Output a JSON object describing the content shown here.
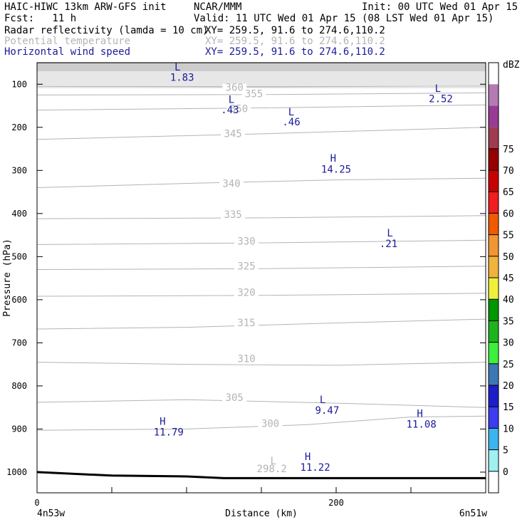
{
  "header": {
    "title_left": "HAIC-HIWC 13km ARW-GFS init",
    "title_center": "NCAR/MMM",
    "init": "Init: 00 UTC Wed 01 Apr 15",
    "fcst": "Fcst:   11 h",
    "valid": "Valid: 11 UTC Wed 01 Apr 15 (08 LST Wed 01 Apr 15)"
  },
  "fields": [
    {
      "name": "Radar reflectivity (lamda = 10 cm)",
      "xy": "XY= 259.5, 91.6 to 274.6,110.2",
      "color": "#000000"
    },
    {
      "name": "Potential temperature",
      "xy": "XY= 259.5, 91.6 to 274.6,110.2",
      "color": "#b4b4b4"
    },
    {
      "name": "Horizontal wind speed",
      "xy": "XY= 259.5, 91.6 to 274.6,110.2",
      "color": "#1a1a9a"
    }
  ],
  "chart_data": {
    "type": "cross-section",
    "xlabel": "Distance (km)",
    "ylabel": "Pressure (hPa)",
    "xlim": [
      0,
      300
    ],
    "ylim": [
      1048,
      50
    ],
    "x_ticks": [
      0,
      200
    ],
    "x_tick_labels": [
      "0",
      "200"
    ],
    "y_ticks": [
      100,
      200,
      300,
      400,
      500,
      600,
      700,
      800,
      900,
      1000
    ],
    "y_tick_labels": [
      "100",
      "200",
      "300",
      "400",
      "500",
      "600",
      "700",
      "800",
      "900",
      "1000"
    ],
    "x_start_label": "4n53w",
    "x_end_label": "6n51w",
    "dbz_scale": {
      "unit": "dBZ",
      "levels": [
        "0",
        "5",
        "10",
        "15",
        "20",
        "25",
        "30",
        "35",
        "40",
        "45",
        "50",
        "55",
        "60",
        "65",
        "70",
        "75"
      ],
      "colors": [
        "#ffffff",
        "#a0f0f0",
        "#3cb4f0",
        "#3c3cf0",
        "#1e1ec8",
        "#3c78b4",
        "#3cf03c",
        "#1eb41e",
        "#009600",
        "#f0f03c",
        "#f0b43c",
        "#f09632",
        "#f05a00",
        "#f01e1e",
        "#c80000",
        "#960000",
        "#a03c50",
        "#963c96",
        "#b47ab4",
        "#ffffff"
      ]
    },
    "theta_contours": [
      {
        "label": "360",
        "points": [
          [
            0,
            105
          ],
          [
            150,
            106
          ],
          [
            300,
            104
          ]
        ]
      },
      {
        "label": "355",
        "points": [
          [
            0,
            125
          ],
          [
            150,
            124
          ],
          [
            300,
            120
          ]
        ]
      },
      {
        "label": "350",
        "points": [
          [
            0,
            160
          ],
          [
            150,
            155
          ],
          [
            300,
            148
          ]
        ]
      },
      {
        "label": "345",
        "points": [
          [
            0,
            228
          ],
          [
            150,
            215
          ],
          [
            300,
            200
          ]
        ]
      },
      {
        "label": "340",
        "points": [
          [
            0,
            340
          ],
          [
            100,
            330
          ],
          [
            200,
            322
          ],
          [
            300,
            318
          ]
        ]
      },
      {
        "label": "335",
        "points": [
          [
            0,
            412
          ],
          [
            150,
            410
          ],
          [
            300,
            405
          ]
        ]
      },
      {
        "label": "330",
        "points": [
          [
            0,
            472
          ],
          [
            150,
            468
          ],
          [
            300,
            462
          ]
        ]
      },
      {
        "label": "325",
        "points": [
          [
            0,
            530
          ],
          [
            150,
            528
          ],
          [
            300,
            522
          ]
        ]
      },
      {
        "label": "320",
        "points": [
          [
            0,
            592
          ],
          [
            150,
            590
          ],
          [
            300,
            585
          ]
        ]
      },
      {
        "label": "315",
        "points": [
          [
            0,
            668
          ],
          [
            100,
            664
          ],
          [
            200,
            654
          ],
          [
            300,
            645
          ]
        ]
      },
      {
        "label": "310",
        "points": [
          [
            0,
            745
          ],
          [
            100,
            750
          ],
          [
            200,
            752
          ],
          [
            300,
            745
          ]
        ]
      },
      {
        "label": "305",
        "points": [
          [
            0,
            838
          ],
          [
            100,
            832
          ],
          [
            200,
            840
          ],
          [
            300,
            850
          ]
        ]
      },
      {
        "label": "300",
        "points": [
          [
            0,
            903
          ],
          [
            100,
            900
          ],
          [
            180,
            890
          ],
          [
            250,
            872
          ],
          [
            300,
            870
          ]
        ]
      }
    ],
    "theta_labels": [
      {
        "text": "360",
        "x": 132,
        "p": 115
      },
      {
        "text": "355",
        "x": 145,
        "p": 130
      },
      {
        "text": "350",
        "x": 135,
        "p": 165
      },
      {
        "text": "345",
        "x": 131,
        "p": 223
      },
      {
        "text": "340",
        "x": 130,
        "p": 338
      },
      {
        "text": "335",
        "x": 131,
        "p": 410
      },
      {
        "text": "330",
        "x": 140,
        "p": 472
      },
      {
        "text": "325",
        "x": 140,
        "p": 530
      },
      {
        "text": "320",
        "x": 140,
        "p": 591
      },
      {
        "text": "315",
        "x": 140,
        "p": 661
      },
      {
        "text": "310",
        "x": 140,
        "p": 745
      },
      {
        "text": "305",
        "x": 132,
        "p": 835
      },
      {
        "text": "300",
        "x": 156,
        "p": 895
      },
      {
        "text": "L",
        "x": 158,
        "p": 982
      },
      {
        "text": "298.2",
        "x": 157,
        "p": 1000
      }
    ],
    "wind_labels": [
      {
        "text": "L",
        "x": 94,
        "p": 68
      },
      {
        "text": "1.83",
        "x": 97,
        "p": 92
      },
      {
        "text": "L",
        "x": 130,
        "p": 143
      },
      {
        "text": ".43",
        "x": 129,
        "p": 167
      },
      {
        "text": "L",
        "x": 170,
        "p": 172
      },
      {
        "text": ".46",
        "x": 170,
        "p": 195
      },
      {
        "text": "L",
        "x": 268,
        "p": 118
      },
      {
        "text": "2.52",
        "x": 270,
        "p": 142
      },
      {
        "text": "H",
        "x": 198,
        "p": 280
      },
      {
        "text": "14.25",
        "x": 200,
        "p": 305
      },
      {
        "text": "L",
        "x": 236,
        "p": 453
      },
      {
        "text": ".21",
        "x": 235,
        "p": 478
      },
      {
        "text": "L",
        "x": 191,
        "p": 840
      },
      {
        "text": "9.47",
        "x": 194,
        "p": 865
      },
      {
        "text": "H",
        "x": 256,
        "p": 872
      },
      {
        "text": "11.08",
        "x": 257,
        "p": 897
      },
      {
        "text": "H",
        "x": 84,
        "p": 890
      },
      {
        "text": "11.79",
        "x": 88,
        "p": 915
      },
      {
        "text": "H",
        "x": 181,
        "p": 972
      },
      {
        "text": "11.22",
        "x": 186,
        "p": 997
      }
    ],
    "terrain": [
      [
        0,
        1000
      ],
      [
        50,
        1008
      ],
      [
        100,
        1010
      ],
      [
        125,
        1014
      ],
      [
        300,
        1014
      ]
    ]
  }
}
